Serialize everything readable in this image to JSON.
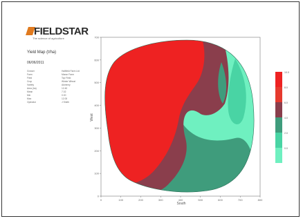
{
  "brand": {
    "name": "FIELDSTAR",
    "tagline": "The science of agriculture"
  },
  "report": {
    "title": "Yield Map (t/ha)",
    "date": "06/06/2011",
    "meta": [
      {
        "key": "Grower",
        "value": "Hallfield Farm Ltd"
      },
      {
        "key": "Farm",
        "value": "Manor Farm"
      },
      {
        "key": "Field",
        "value": "Top Field"
      },
      {
        "key": "Crop",
        "value": "Winter Wheat"
      },
      {
        "key": "Variety",
        "value": "Alchemy"
      },
      {
        "key": "Area (ha)",
        "value": "12.40"
      },
      {
        "key": "Mean",
        "value": "7.02"
      },
      {
        "key": "Min",
        "value": "0.00"
      },
      {
        "key": "Max",
        "value": "12.00"
      },
      {
        "key": "Operator",
        "value": "J Smith"
      }
    ]
  },
  "chart_data": {
    "type": "heatmap",
    "xlabel": "South",
    "ylabel": "West",
    "x_ticks": [
      "0",
      "100",
      "200",
      "300",
      "400",
      "500",
      "600",
      "700",
      "800"
    ],
    "y_ticks": [
      "0",
      "100",
      "200",
      "300",
      "400",
      "500",
      "600",
      "700"
    ],
    "xlim": [
      0,
      800
    ],
    "ylim": [
      0,
      700
    ],
    "legend": [
      {
        "label": "10.0",
        "color": "#ee2222"
      },
      {
        "label": "8.0",
        "color": "#e63a2e"
      },
      {
        "label": "6.0",
        "color": "#8a3e4c"
      },
      {
        "label": "4.0",
        "color": "#3f9c7c"
      },
      {
        "label": "2.0",
        "color": "#49d4a4"
      },
      {
        "label": "0.0",
        "color": "#6ff0c0"
      }
    ]
  }
}
